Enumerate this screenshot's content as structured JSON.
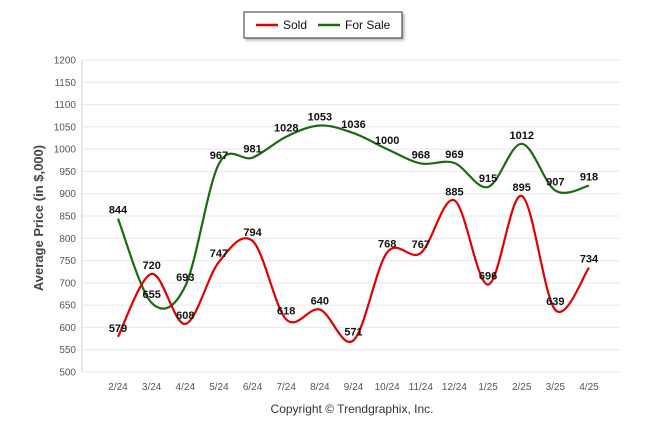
{
  "chart_data": {
    "type": "line",
    "categories": [
      "2/24",
      "3/24",
      "4/24",
      "5/24",
      "6/24",
      "7/24",
      "8/24",
      "9/24",
      "10/24",
      "11/24",
      "12/24",
      "1/25",
      "2/25",
      "3/25",
      "4/25"
    ],
    "series": [
      {
        "name": "Sold",
        "color": "#e00000",
        "values": [
          579,
          720,
          608,
          747,
          794,
          618,
          640,
          571,
          768,
          767,
          885,
          696,
          895,
          639,
          734
        ]
      },
      {
        "name": "For Sale",
        "color": "#1a6b10",
        "values": [
          844,
          655,
          693,
          967,
          981,
          1028,
          1053,
          1036,
          1000,
          968,
          969,
          915,
          1012,
          907,
          918
        ]
      }
    ],
    "ylabel": "Average Price (in $,000)",
    "ylim": [
      500,
      1200
    ],
    "yticks": [
      500,
      550,
      600,
      650,
      700,
      750,
      800,
      850,
      900,
      950,
      1000,
      1050,
      1100,
      1150,
      1200
    ],
    "grid": true,
    "legend": "top-center"
  },
  "footer": {
    "copyright": "Copyright © Trendgraphix, Inc."
  }
}
